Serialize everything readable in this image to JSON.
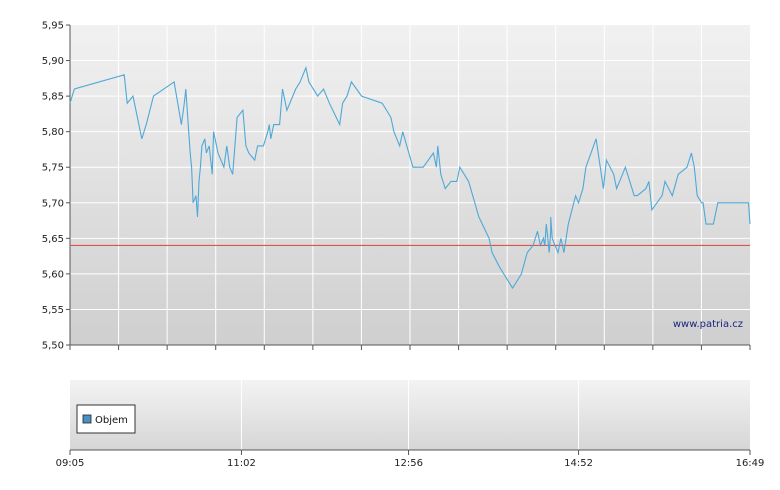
{
  "chart_data": [
    {
      "type": "line",
      "name": "price",
      "ylim": [
        5.5,
        5.95
      ],
      "y_ticks": [
        "5,95",
        "5,90",
        "5,85",
        "5,80",
        "5,75",
        "5,70",
        "5,65",
        "5,60",
        "5,55",
        "5,50"
      ],
      "y_tick_values": [
        5.95,
        5.9,
        5.85,
        5.8,
        5.75,
        5.7,
        5.65,
        5.6,
        5.55,
        5.5
      ],
      "x_range": [
        "09:05",
        "16:49"
      ],
      "x_ticks": [
        "09:05",
        "11:02",
        "12:56",
        "14:52",
        "16:49"
      ],
      "grid": true,
      "reference_line": {
        "value": 5.64,
        "color": "#d9534f"
      },
      "line_color": "#4fa8d8",
      "series": [
        {
          "x": [
            "09:05",
            "09:08",
            "09:42",
            "09:44",
            "09:48",
            "09:51",
            "09:54",
            "09:57",
            "10:02",
            "10:16",
            "10:21",
            "10:23",
            "10:24",
            "10:26",
            "10:27",
            "10:28",
            "10:29",
            "10:31",
            "10:32",
            "10:33",
            "10:34",
            "10:35",
            "10:37",
            "10:38",
            "10:40",
            "10:42",
            "10:43",
            "10:46",
            "10:50",
            "10:52",
            "10:54",
            "10:56",
            "10:59",
            "11:03",
            "11:05",
            "11:07",
            "11:11",
            "11:13",
            "11:17",
            "11:20",
            "11:21",
            "11:22",
            "11:24",
            "11:28",
            "11:30",
            "11:33",
            "11:39",
            "11:42",
            "11:46",
            "11:48",
            "11:54",
            "11:58",
            "12:02",
            "12:09",
            "12:11",
            "12:14",
            "12:17",
            "12:24",
            "12:38",
            "12:44",
            "12:46",
            "12:50",
            "12:52",
            "12:59",
            "13:06",
            "13:13",
            "13:15",
            "13:16",
            "13:18",
            "13:21",
            "13:25",
            "13:29",
            "13:31",
            "13:37",
            "13:44",
            "13:51",
            "13:53",
            "13:58",
            "14:01",
            "14:07",
            "14:10",
            "14:13",
            "14:17",
            "14:21",
            "14:24",
            "14:26",
            "14:28",
            "14:29",
            "14:30",
            "14:31",
            "14:32",
            "14:33",
            "14:33",
            "14:34",
            "14:38",
            "14:40",
            "14:42",
            "14:45",
            "14:50",
            "14:52",
            "14:55",
            "14:57",
            "15:04",
            "15:09",
            "15:11",
            "15:16",
            "15:18",
            "15:20",
            "15:24",
            "15:30",
            "15:32",
            "15:38",
            "15:40",
            "15:42",
            "15:49",
            "15:51",
            "15:56",
            "16:00",
            "16:06",
            "16:09",
            "16:11",
            "16:13",
            "16:16",
            "16:17",
            "16:19",
            "16:24",
            "16:27",
            "16:29",
            "16:31",
            "16:33",
            "16:39",
            "16:41",
            "16:44",
            "16:47",
            "16:48",
            "16:49"
          ],
          "values": [
            5.84,
            5.86,
            5.88,
            5.84,
            5.85,
            5.82,
            5.79,
            5.81,
            5.85,
            5.87,
            5.81,
            5.84,
            5.86,
            5.8,
            5.77,
            5.75,
            5.7,
            5.71,
            5.68,
            5.73,
            5.75,
            5.78,
            5.79,
            5.77,
            5.78,
            5.74,
            5.8,
            5.77,
            5.75,
            5.78,
            5.75,
            5.74,
            5.82,
            5.83,
            5.78,
            5.77,
            5.76,
            5.78,
            5.78,
            5.8,
            5.81,
            5.79,
            5.81,
            5.81,
            5.86,
            5.83,
            5.86,
            5.87,
            5.89,
            5.87,
            5.85,
            5.86,
            5.84,
            5.81,
            5.84,
            5.85,
            5.87,
            5.85,
            5.84,
            5.82,
            5.8,
            5.78,
            5.8,
            5.75,
            5.75,
            5.77,
            5.75,
            5.78,
            5.74,
            5.72,
            5.73,
            5.73,
            5.75,
            5.73,
            5.68,
            5.65,
            5.63,
            5.61,
            5.6,
            5.58,
            5.59,
            5.6,
            5.63,
            5.64,
            5.66,
            5.64,
            5.65,
            5.64,
            5.67,
            5.65,
            5.63,
            5.66,
            5.68,
            5.65,
            5.63,
            5.65,
            5.63,
            5.67,
            5.71,
            5.7,
            5.72,
            5.75,
            5.79,
            5.72,
            5.76,
            5.74,
            5.72,
            5.73,
            5.75,
            5.71,
            5.71,
            5.72,
            5.73,
            5.69,
            5.71,
            5.73,
            5.71,
            5.74,
            5.75,
            5.77,
            5.75,
            5.71,
            5.7,
            5.7,
            5.67,
            5.67,
            5.7,
            5.7,
            5.7,
            5.7,
            5.7,
            5.7,
            5.7,
            5.7,
            5.7,
            5.67
          ]
        }
      ]
    },
    {
      "type": "bar",
      "name": "volume",
      "legend": [
        "Objem"
      ],
      "legend_color": "#4a90c2",
      "series": [
        {
          "name": "Objem",
          "values": []
        }
      ]
    }
  ],
  "watermark": "www.patria.cz"
}
